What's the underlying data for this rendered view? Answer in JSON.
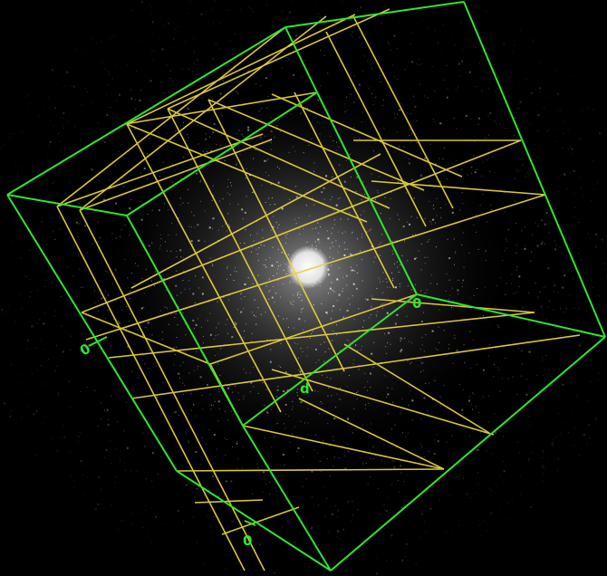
{
  "scene": {
    "background": "#000000",
    "star_color": "#ffffff",
    "core_color": "#f0f0f0",
    "box_color": "#2ee62e",
    "grid_color": "#e6d23a",
    "label_color": "#2ee62e"
  },
  "axis_labels": {
    "left": "0",
    "bottom": "0",
    "center": "d",
    "right": "0"
  }
}
